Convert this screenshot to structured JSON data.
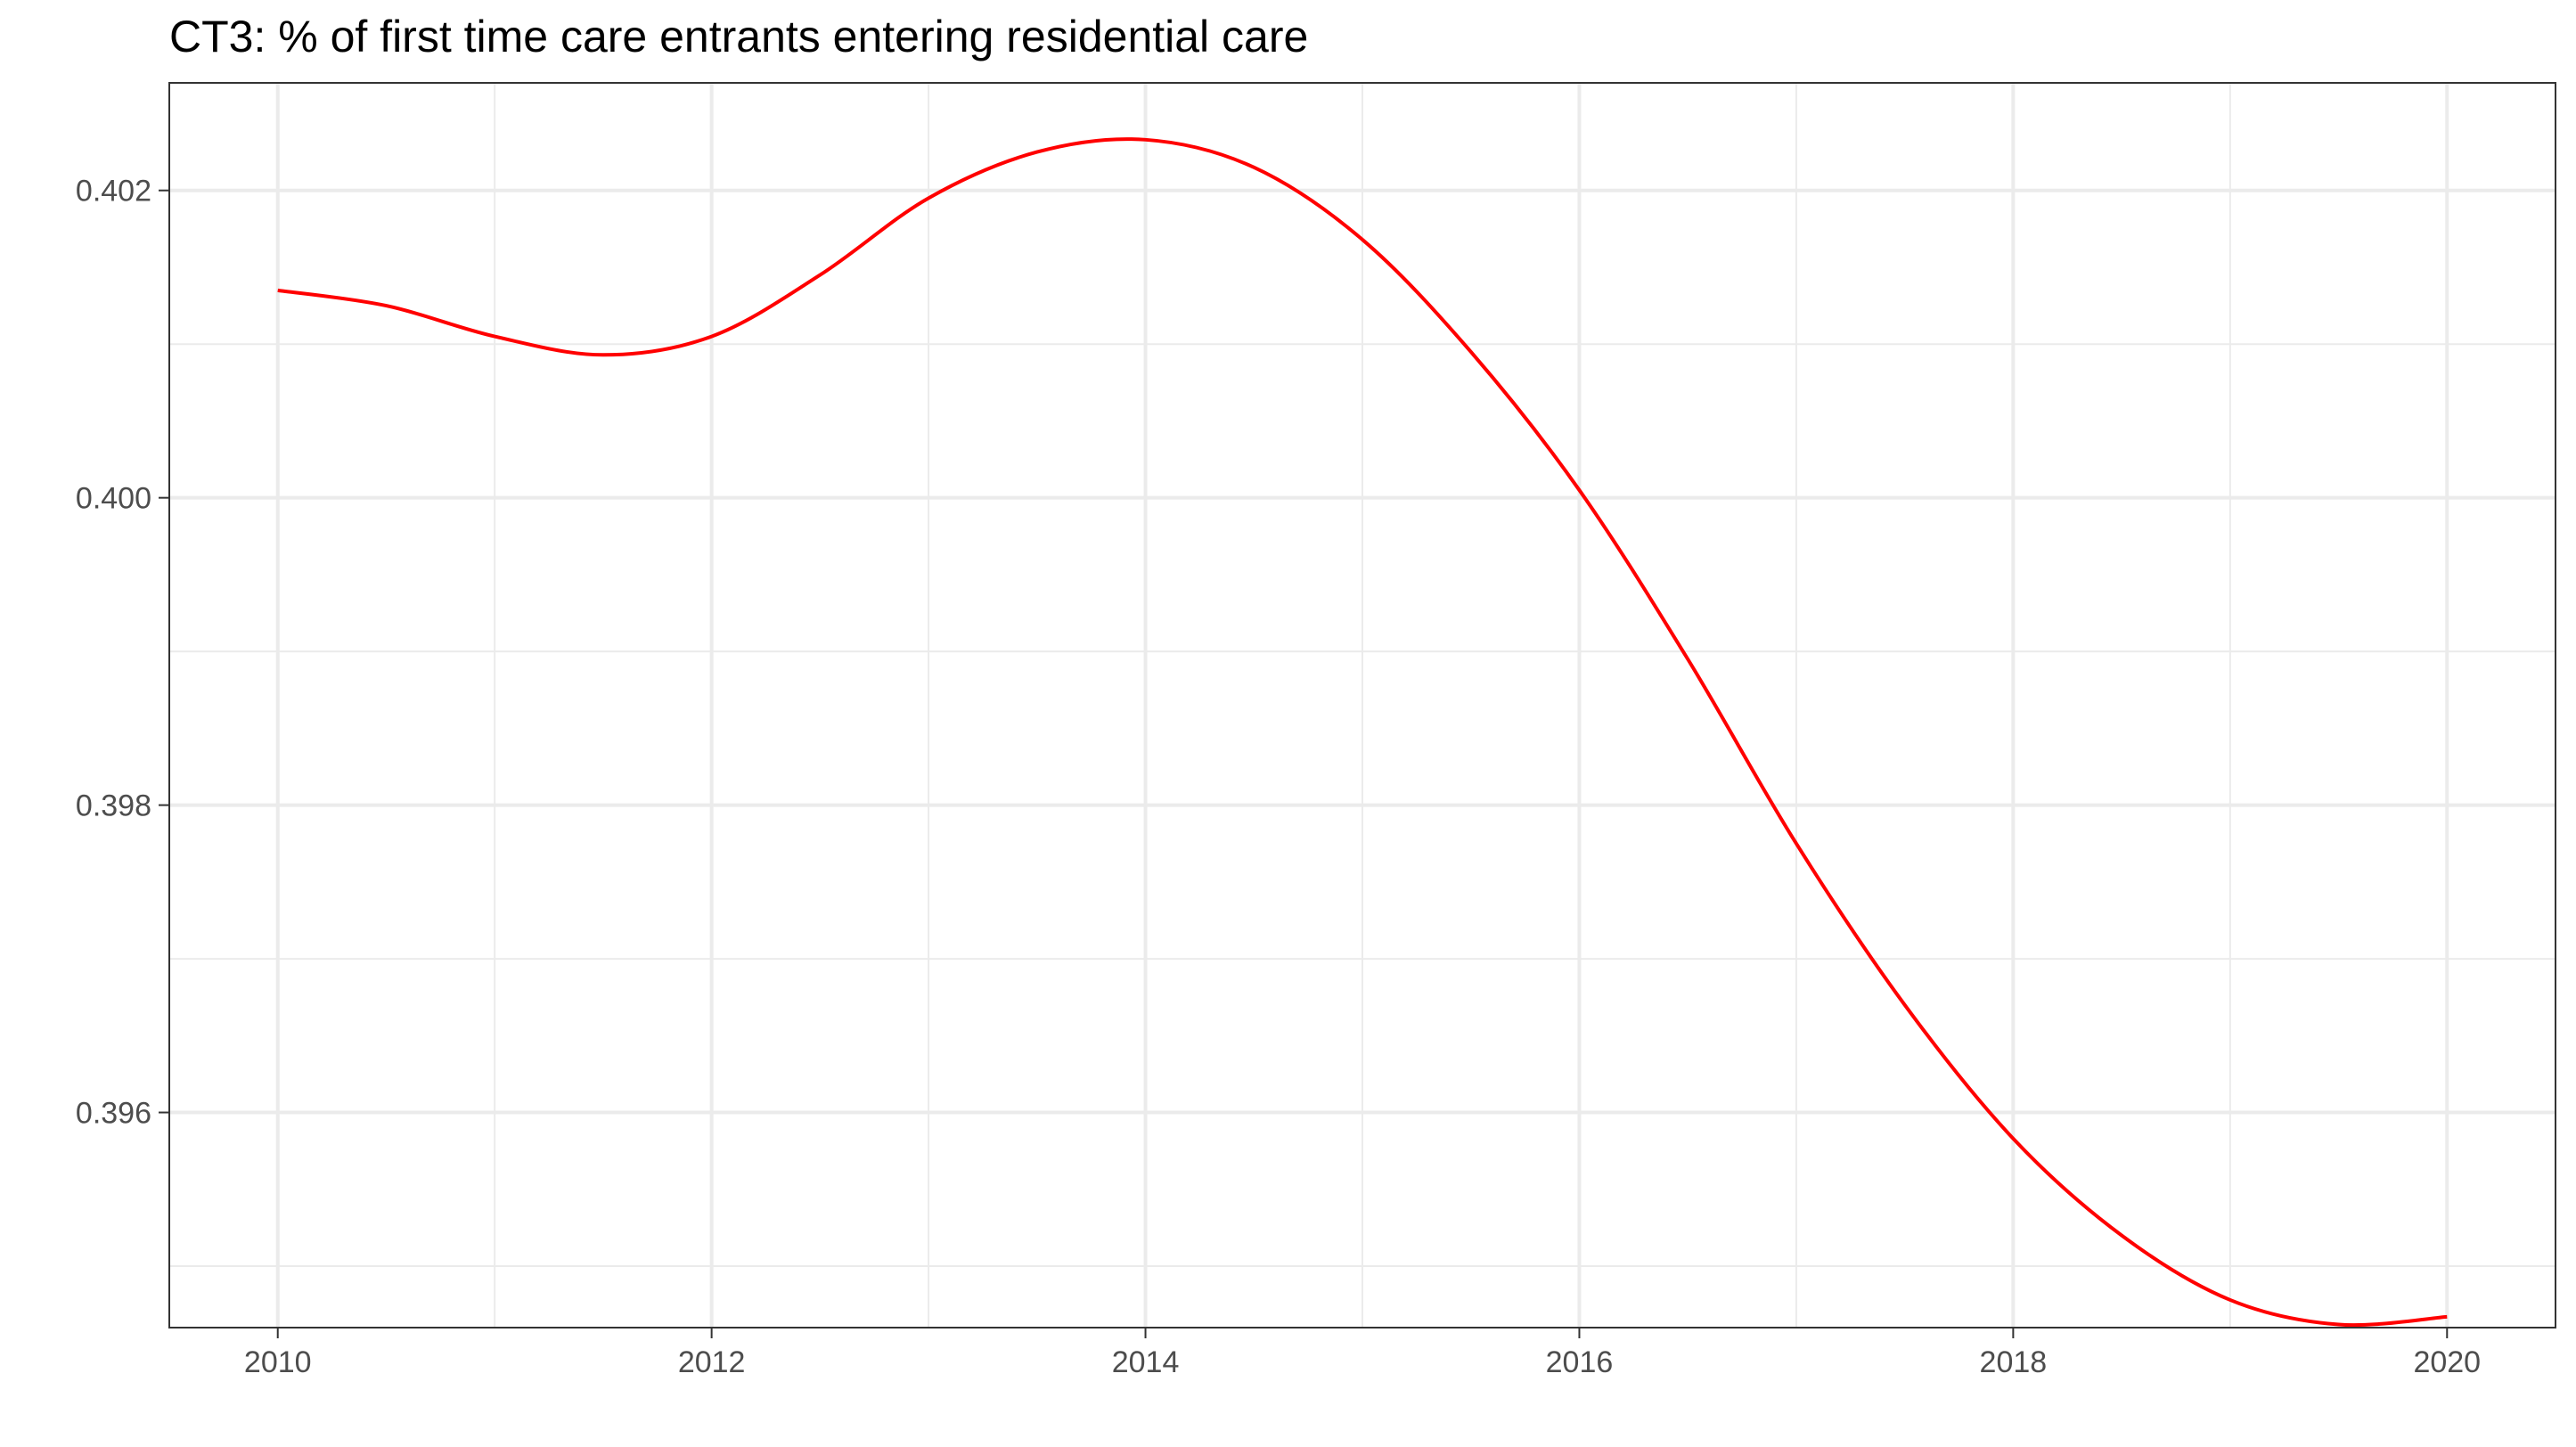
{
  "chart_data": {
    "type": "line",
    "title": "CT3: % of first time care entrants entering residential care",
    "xlabel": "",
    "ylabel": "",
    "xlim": [
      2009.5,
      2020.5
    ],
    "ylim": [
      0.3946,
      0.4027
    ],
    "x_ticks": [
      2010,
      2012,
      2014,
      2016,
      2018,
      2020
    ],
    "x_tick_labels": [
      "2010",
      "2012",
      "2014",
      "2016",
      "2018",
      "2020"
    ],
    "y_ticks": [
      0.396,
      0.398,
      0.4,
      0.402
    ],
    "y_tick_labels": [
      "0.396",
      "0.398",
      "0.400",
      "0.402"
    ],
    "grid": true,
    "legend": "none",
    "series": [
      {
        "color": "#ff0000",
        "x": [
          2010,
          2010.5,
          2011,
          2011.5,
          2012,
          2012.5,
          2013,
          2013.5,
          2014,
          2014.5,
          2015,
          2015.5,
          2016,
          2016.5,
          2017,
          2017.5,
          2018,
          2018.5,
          2019,
          2019.5,
          2020
        ],
        "y": [
          0.40135,
          0.40125,
          0.40105,
          0.40093,
          0.40105,
          0.40145,
          0.40195,
          0.40225,
          0.40233,
          0.40215,
          0.40168,
          0.40095,
          0.40005,
          0.39895,
          0.39775,
          0.3967,
          0.39583,
          0.3952,
          0.39478,
          0.39462,
          0.39467
        ]
      }
    ]
  }
}
